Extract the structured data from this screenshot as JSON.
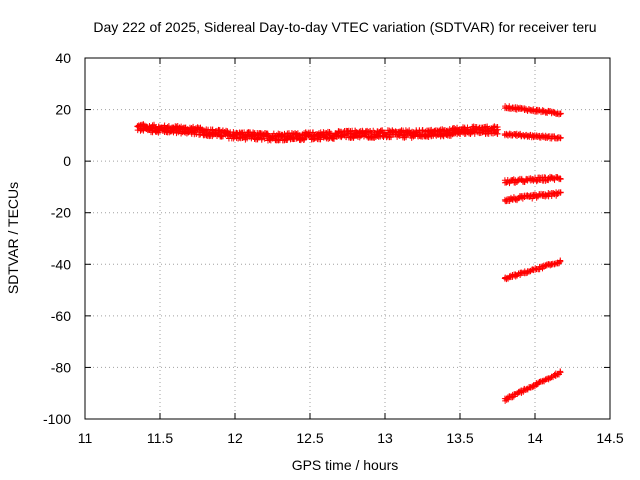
{
  "chart_data": {
    "type": "scatter",
    "title": "Day 222 of 2025, Sidereal Day-to-day VTEC variation (SDTVAR) for receiver teru",
    "xlabel": "GPS time / hours",
    "ylabel": "SDTVAR / TECUs",
    "xlim": [
      11,
      14.5
    ],
    "ylim": [
      -100,
      40
    ],
    "xticks": [
      "11",
      "11.5",
      "12",
      "12.5",
      "13",
      "13.5",
      "14",
      "14.5"
    ],
    "yticks": [
      "-100",
      "-80",
      "-60",
      "-40",
      "-20",
      "0",
      "20",
      "40"
    ],
    "grid": true,
    "marker": "+",
    "color": "#ff0000",
    "series": [
      {
        "name": "main-band",
        "x_range": [
          11.35,
          13.75
        ],
        "y_profile": [
          [
            11.35,
            13
          ],
          [
            11.5,
            12.5
          ],
          [
            11.7,
            12
          ],
          [
            11.85,
            11
          ],
          [
            12.0,
            10
          ],
          [
            12.2,
            9.5
          ],
          [
            12.4,
            9.5
          ],
          [
            12.6,
            10
          ],
          [
            12.8,
            10.5
          ],
          [
            13.0,
            10.5
          ],
          [
            13.2,
            10.5
          ],
          [
            13.4,
            11
          ],
          [
            13.55,
            12
          ],
          [
            13.75,
            12
          ]
        ],
        "spread": 3
      },
      {
        "name": "cluster-1",
        "x_range": [
          13.8,
          14.17
        ],
        "y_range": [
          21,
          18.5
        ],
        "spread": 1
      },
      {
        "name": "cluster-2",
        "x_range": [
          13.8,
          14.17
        ],
        "y_range": [
          10.5,
          9
        ],
        "spread": 1
      },
      {
        "name": "cluster-3",
        "x_range": [
          13.8,
          14.17
        ],
        "y_range": [
          -8,
          -6.5
        ],
        "spread": 1.5
      },
      {
        "name": "cluster-4",
        "x_range": [
          13.8,
          14.17
        ],
        "y_range": [
          -15,
          -12.5
        ],
        "spread": 1.5
      },
      {
        "name": "cluster-5",
        "x_range": [
          13.8,
          14.17
        ],
        "y_range": [
          -45.5,
          -39
        ],
        "spread": 1
      },
      {
        "name": "cluster-6",
        "x_range": [
          13.8,
          14.17
        ],
        "y_range": [
          -92.5,
          -82
        ],
        "spread": 1
      }
    ]
  }
}
